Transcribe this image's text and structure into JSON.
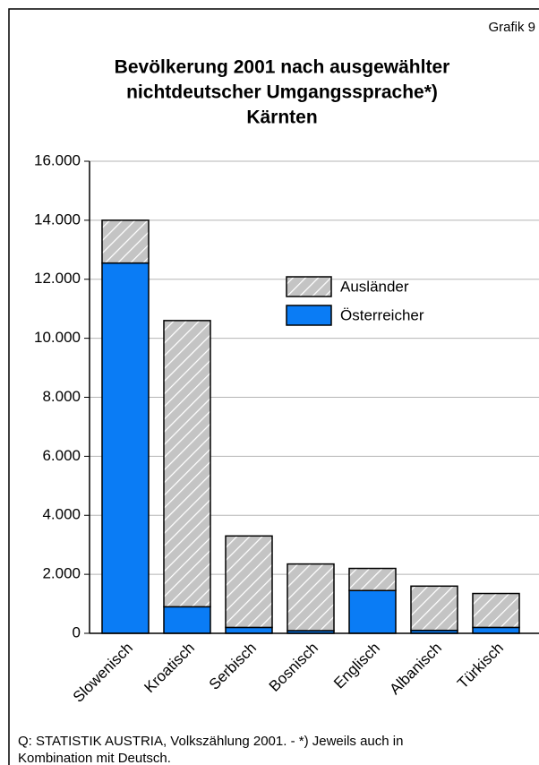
{
  "chart_data": {
    "type": "stacked_bar",
    "corner_note": "Grafik 9",
    "title": [
      "Bevölkerung 2001 nach ausgewählter",
      "nichtdeutscher Umgangssprache*)",
      "Kärnten"
    ],
    "categories": [
      "Slowenisch",
      "Kroatisch",
      "Serbisch",
      "Bosnisch",
      "Englisch",
      "Albanisch",
      "Türkisch"
    ],
    "series": [
      {
        "name": "Österreicher",
        "color": "#0a7cf5",
        "hatch": false,
        "values": [
          12550,
          900,
          200,
          90,
          1450,
          100,
          200
        ]
      },
      {
        "name": "Ausländer",
        "color": "#c4c4c4",
        "hatch": true,
        "values": [
          1450,
          9700,
          3100,
          2260,
          750,
          1500,
          1150
        ]
      }
    ],
    "ylim": [
      0,
      16000
    ],
    "yticks": [
      0,
      {
        "value": 2000,
        "label": "2.000"
      },
      {
        "value": 4000,
        "label": "4.000"
      },
      {
        "value": 6000,
        "label": "6.000"
      },
      {
        "value": 8000,
        "label": "8.000"
      },
      {
        "value": 10000,
        "label": "10.000"
      },
      {
        "value": 12000,
        "label": "12.000"
      },
      {
        "value": 14000,
        "label": "14.000"
      },
      {
        "value": 16000,
        "label": "16.000"
      }
    ],
    "grid": true,
    "source": [
      "Q: STATISTIK AUSTRIA, Volkszählung 2001. - *) Jeweils auch in",
      "Kombination mit Deutsch."
    ]
  }
}
